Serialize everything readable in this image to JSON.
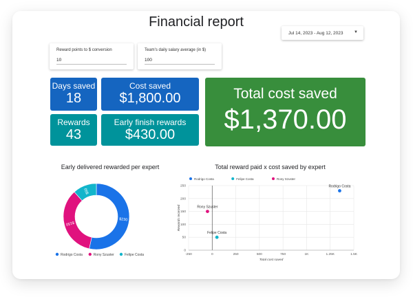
{
  "header": {
    "title": "Financial report",
    "date_range": "Jul 14, 2023 - Aug 12, 2023"
  },
  "params": [
    {
      "label": "Reward points to $ conversion",
      "value": "10"
    },
    {
      "label": "Team's daily salary average (in $)",
      "value": "100"
    }
  ],
  "kpis": {
    "days_saved": {
      "label": "Days saved",
      "value": "18"
    },
    "cost_saved": {
      "label": "Cost saved",
      "value": "$1,800.00"
    },
    "rewards": {
      "label": "Rewards",
      "value": "43"
    },
    "early_finish": {
      "label": "Early finish rewards",
      "value": "$430.00"
    },
    "total": {
      "label": "Total cost saved",
      "value": "$1,370.00"
    }
  },
  "colors": {
    "blue": "#1565c0",
    "teal": "#00939b",
    "green": "#388e3c",
    "pink": "#e0127e",
    "series_blue": "#1a73e8",
    "series_teal": "#12b5cb"
  },
  "chart_data": [
    {
      "type": "pie",
      "title": "Early delivered rewarded per expert",
      "donut": true,
      "legend": "bottom",
      "slices": [
        {
          "name": "Rodrigo Costa",
          "value": 230,
          "label": "$230",
          "color": "#1a73e8"
        },
        {
          "name": "Rony Szuster",
          "value": 150,
          "label": "$150",
          "color": "#e0127e"
        },
        {
          "name": "Felipe Costa",
          "value": 50,
          "label": "$50",
          "color": "#12b5cb"
        }
      ]
    },
    {
      "type": "scatter",
      "title": "Total reward paid x cost saved by expert",
      "xlabel": "Total cost saved",
      "ylabel": "Rewards received",
      "xlim": [
        -250,
        1500
      ],
      "ylim": [
        0,
        250
      ],
      "xticks": [
        "-250",
        "0",
        "250",
        "500",
        "750",
        "1K",
        "1.25K",
        "1.5K"
      ],
      "xtick_values": [
        -250,
        0,
        250,
        500,
        750,
        1000,
        1250,
        1500
      ],
      "yticks": [
        0,
        50,
        100,
        150,
        200,
        250
      ],
      "grid": true,
      "legend": "top-left",
      "series": [
        {
          "name": "Rodrigo Costa",
          "x": 1350,
          "y": 230,
          "color": "#1a73e8"
        },
        {
          "name": "Felipe Costa",
          "x": 50,
          "y": 50,
          "color": "#12b5cb"
        },
        {
          "name": "Rony Szuster",
          "x": -50,
          "y": 150,
          "color": "#e0127e"
        }
      ]
    }
  ]
}
